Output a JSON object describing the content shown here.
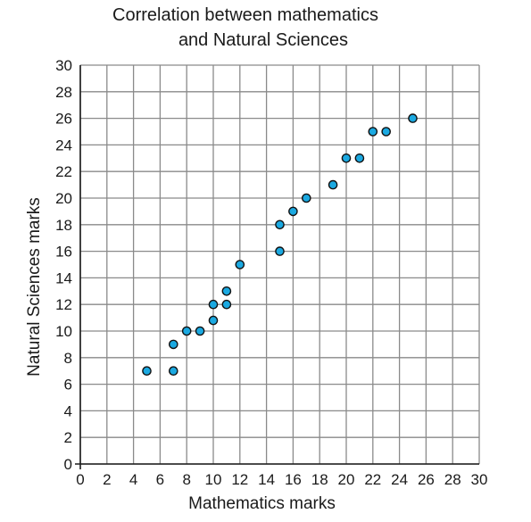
{
  "chart_data": {
    "type": "scatter",
    "title_lines": [
      "Correlation between mathematics",
      "and Natural Sciences"
    ],
    "xlabel": "Mathematics marks",
    "ylabel": "Natural Sciences marks",
    "xlim": [
      0,
      30
    ],
    "ylim": [
      0,
      30
    ],
    "x_ticks": [
      "0",
      "2",
      "4",
      "6",
      "8",
      "10",
      "12",
      "14",
      "16",
      "18",
      "20",
      "22",
      "24",
      "26",
      "28",
      "30"
    ],
    "y_ticks": [
      "0",
      "2",
      "4",
      "6",
      "8",
      "10",
      "12",
      "14",
      "16",
      "18",
      "20",
      "22",
      "24",
      "26",
      "28",
      "30"
    ],
    "grid": true,
    "point_color": "#1ba9e1",
    "points": [
      {
        "x": 5,
        "y": 7
      },
      {
        "x": 7,
        "y": 7
      },
      {
        "x": 7,
        "y": 9
      },
      {
        "x": 8,
        "y": 10
      },
      {
        "x": 9,
        "y": 10
      },
      {
        "x": 10,
        "y": 10.8
      },
      {
        "x": 10,
        "y": 12
      },
      {
        "x": 11,
        "y": 12
      },
      {
        "x": 11,
        "y": 13
      },
      {
        "x": 12,
        "y": 15
      },
      {
        "x": 15,
        "y": 16
      },
      {
        "x": 15,
        "y": 18
      },
      {
        "x": 16,
        "y": 19
      },
      {
        "x": 17,
        "y": 20
      },
      {
        "x": 19,
        "y": 21
      },
      {
        "x": 20,
        "y": 23
      },
      {
        "x": 21,
        "y": 23
      },
      {
        "x": 22,
        "y": 25
      },
      {
        "x": 23,
        "y": 25
      },
      {
        "x": 25,
        "y": 26
      }
    ]
  }
}
